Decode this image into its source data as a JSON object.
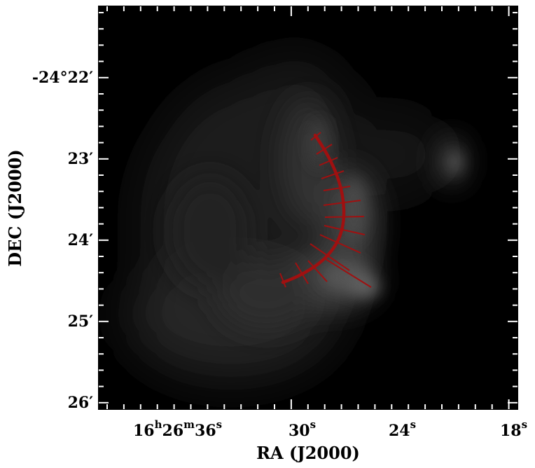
{
  "axes": {
    "x_label": "RA (J2000)",
    "y_label": "DEC (J2000)"
  },
  "x_ticks": [
    {
      "main": "16",
      "sup1": "h",
      "mid": "26",
      "sup2": "m",
      "end": "36",
      "sup3": "s"
    },
    {
      "main": "30",
      "sup": "s"
    },
    {
      "main": "24",
      "sup": "s"
    },
    {
      "main": "18",
      "sup": "s"
    }
  ],
  "y_ticks": [
    {
      "text": "-24°22′"
    },
    {
      "text": "23′"
    },
    {
      "text": "24′"
    },
    {
      "text": "25′"
    },
    {
      "text": "26′"
    }
  ],
  "colors": {
    "filament_spine": "#a01010",
    "perpendicular_cuts": "#a01010",
    "image_background": "#000000",
    "tick_marks": "#ffffff"
  },
  "overlay": {
    "spine_label": "filament spine",
    "cuts_count": 14
  }
}
